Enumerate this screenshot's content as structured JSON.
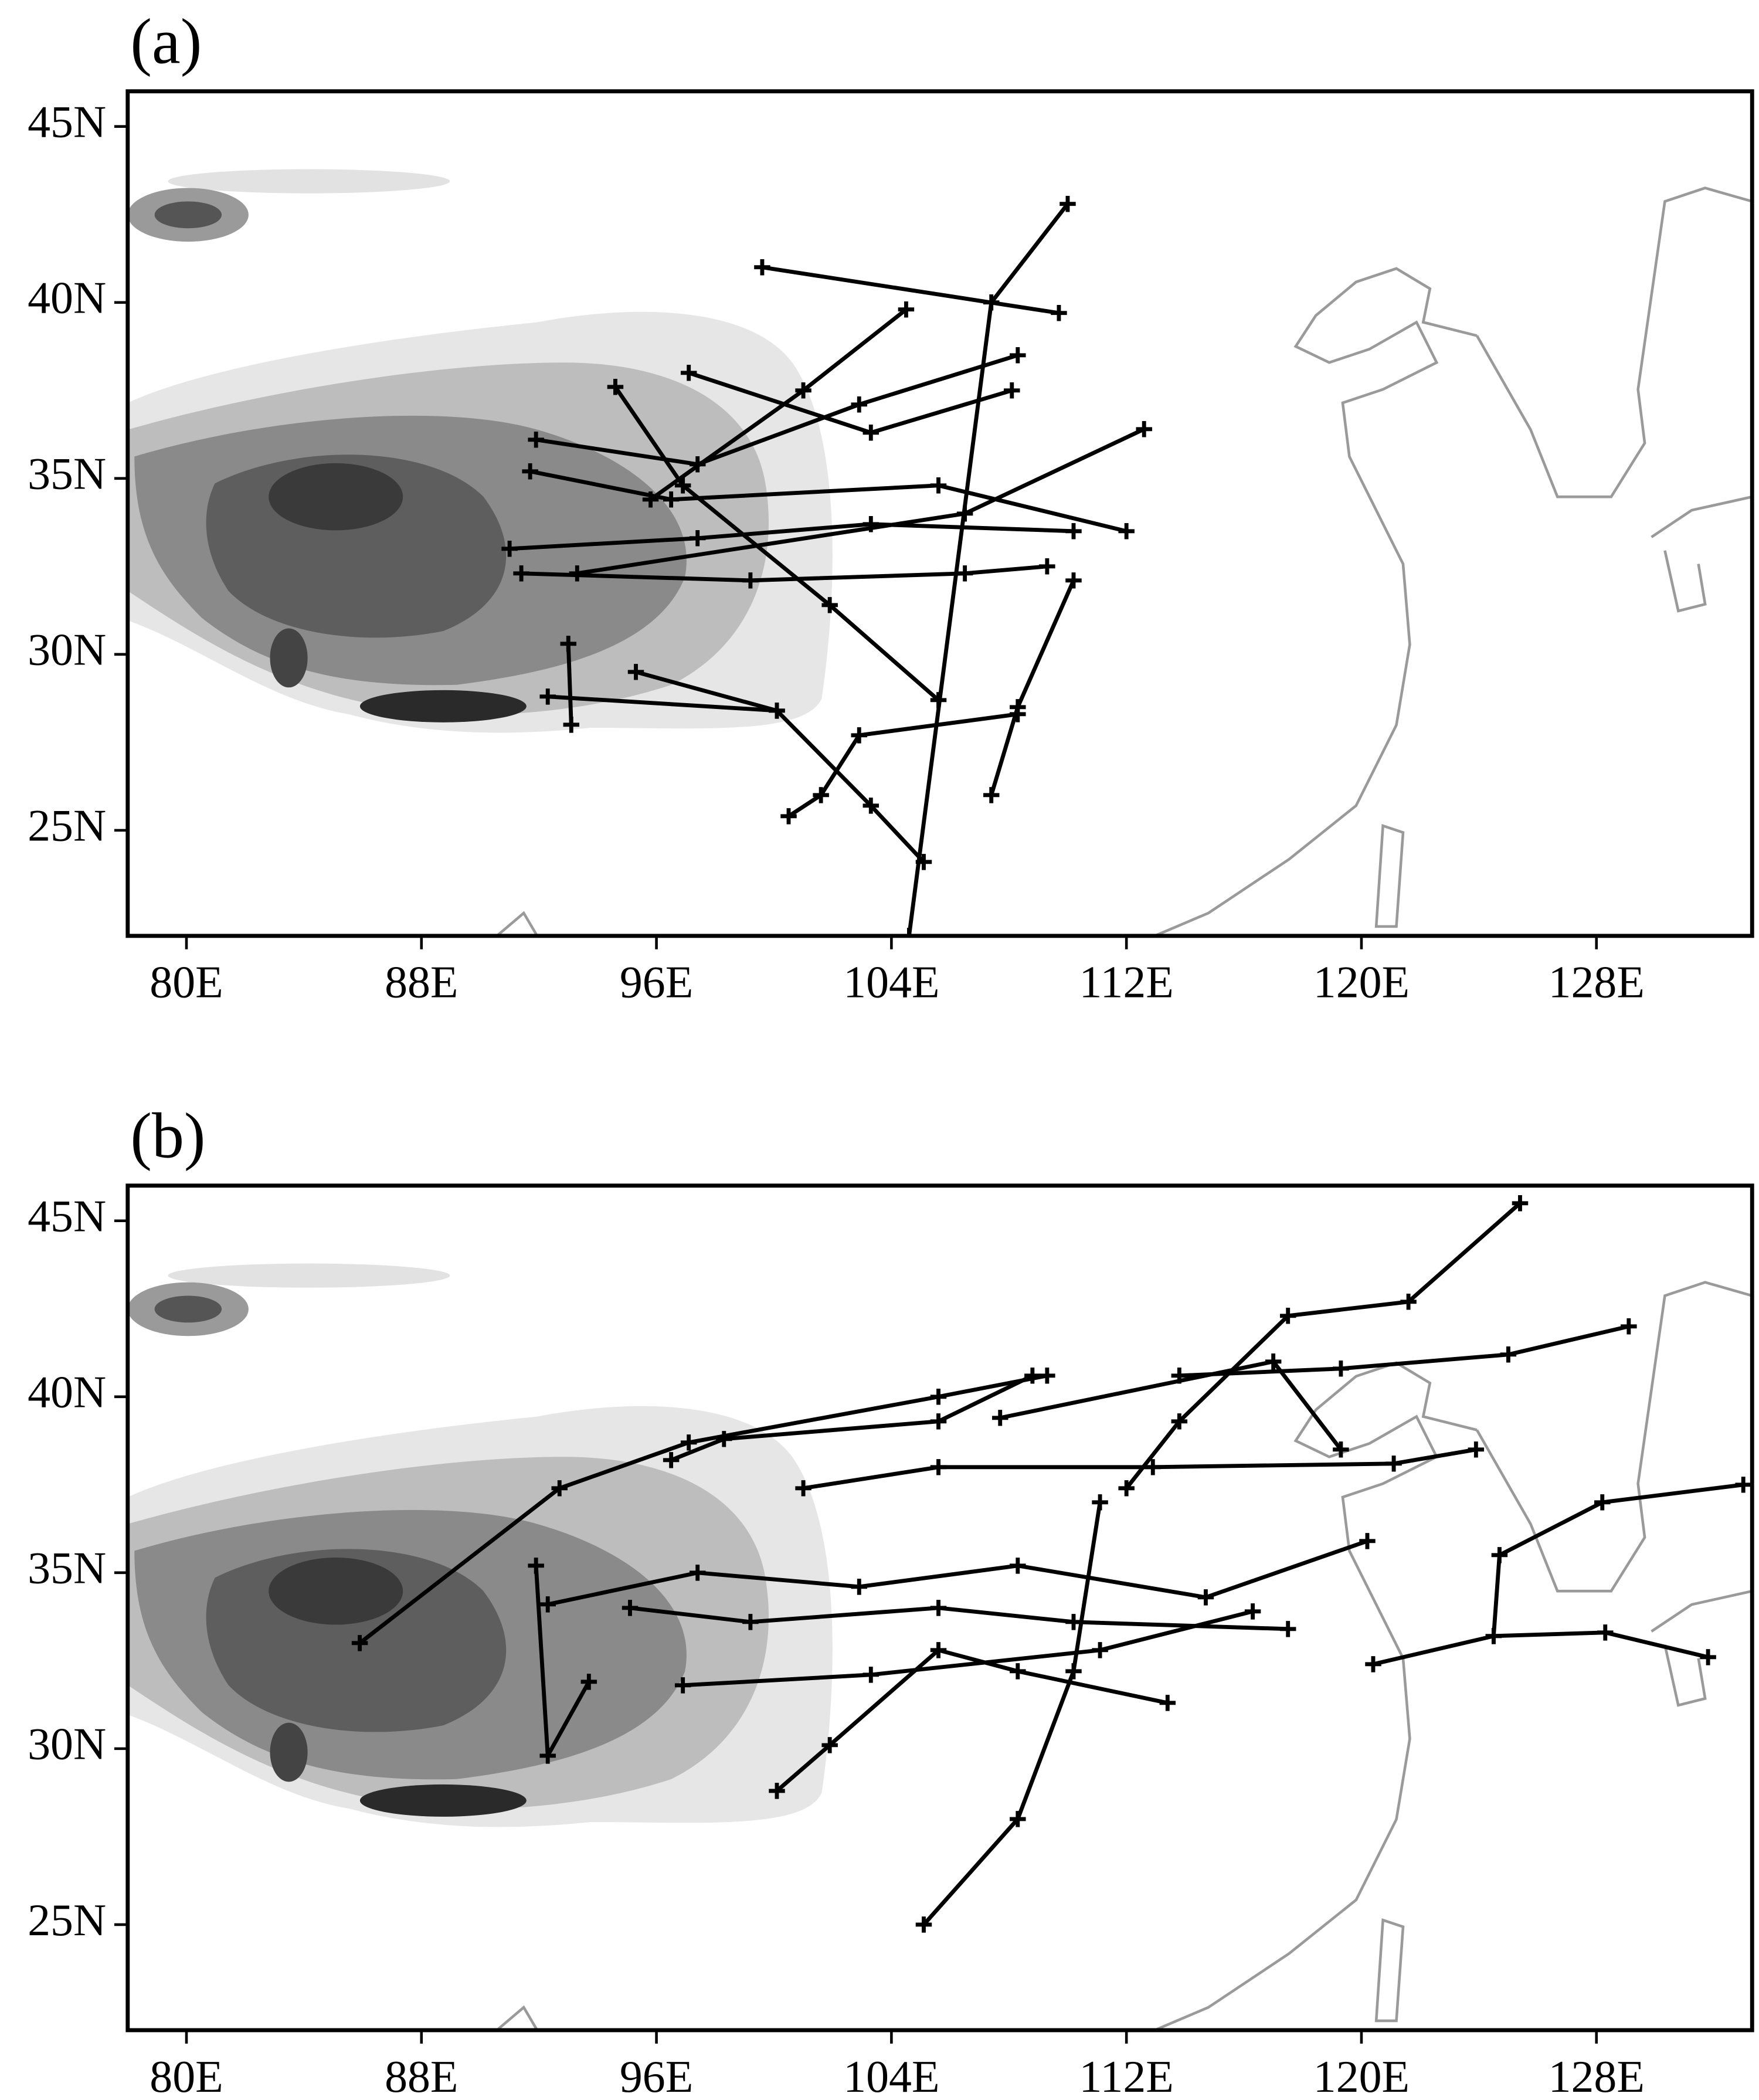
{
  "chart_data": [
    {
      "type": "line",
      "title": "(a)",
      "color": "#000000",
      "marker": "+",
      "xlim": [
        78,
        133.3
      ],
      "ylim": [
        22,
        46
      ],
      "xticks": [
        {
          "value": 80,
          "label": "80E"
        },
        {
          "value": 88,
          "label": "88E"
        },
        {
          "value": 96,
          "label": "96E"
        },
        {
          "value": 104,
          "label": "104E"
        },
        {
          "value": 112,
          "label": "112E"
        },
        {
          "value": 120,
          "label": "120E"
        },
        {
          "value": 128,
          "label": "128E"
        }
      ],
      "yticks": [
        {
          "value": 25,
          "label": "25N"
        },
        {
          "value": 30,
          "label": "30N"
        },
        {
          "value": 35,
          "label": "35N"
        },
        {
          "value": 40,
          "label": "40N"
        },
        {
          "value": 45,
          "label": "45N"
        }
      ],
      "series": [
        {
          "x": [
            99.6,
            109.7
          ],
          "values": [
            41.0,
            39.7
          ]
        },
        {
          "x": [
            110.0,
            107.4,
            104.6
          ],
          "values": [
            42.8,
            40.0,
            22.0
          ]
        },
        {
          "x": [
            112.6,
            106.5,
            93.3
          ],
          "values": [
            36.4,
            34.0,
            32.3
          ]
        },
        {
          "x": [
            95.3,
            100.1,
            103.3,
            105.1
          ],
          "values": [
            29.5,
            28.4,
            25.7,
            24.1
          ]
        },
        {
          "x": [
            92.3,
            100.1
          ],
          "values": [
            28.8,
            28.4
          ]
        },
        {
          "x": [
            93.0,
            93.1
          ],
          "values": [
            30.3,
            28.0
          ]
        },
        {
          "x": [
            91.0,
            97.4,
            103.3,
            110.2
          ],
          "values": [
            33.0,
            33.3,
            33.7,
            33.5
          ]
        },
        {
          "x": [
            91.9,
            97.4,
            102.9,
            108.3
          ],
          "values": [
            36.1,
            35.4,
            37.1,
            38.5
          ]
        },
        {
          "x": [
            94.6,
            96.9,
            101.9,
            105.6
          ],
          "values": [
            37.6,
            34.8,
            31.4,
            28.7
          ]
        },
        {
          "x": [
            97.1,
            103.3,
            108.1
          ],
          "values": [
            38.0,
            36.3,
            37.5
          ]
        },
        {
          "x": [
            91.7,
            96.5,
            105.6,
            112.0
          ],
          "values": [
            35.2,
            34.4,
            34.8,
            33.5
          ]
        },
        {
          "x": [
            91.4,
            99.2,
            106.5,
            109.3
          ],
          "values": [
            32.3,
            32.1,
            32.3,
            32.5
          ]
        },
        {
          "x": [
            107.4,
            108.3,
            110.2
          ],
          "values": [
            26.0,
            28.5,
            32.1
          ]
        },
        {
          "x": [
            100.5,
            101.6,
            102.9,
            108.3
          ],
          "values": [
            25.4,
            26.0,
            27.7,
            28.3
          ]
        },
        {
          "x": [
            104.5,
            101.0,
            95.8
          ],
          "values": [
            39.8,
            37.5,
            34.4
          ]
        }
      ]
    },
    {
      "type": "line",
      "title": "(b)",
      "color": "#000000",
      "marker": "+",
      "xlim": [
        78,
        133.3
      ],
      "ylim": [
        22,
        46
      ],
      "xticks": [
        {
          "value": 80,
          "label": "80E"
        },
        {
          "value": 88,
          "label": "88E"
        },
        {
          "value": 96,
          "label": "96E"
        },
        {
          "value": 104,
          "label": "104E"
        },
        {
          "value": 112,
          "label": "112E"
        },
        {
          "value": 120,
          "label": "120E"
        },
        {
          "value": 128,
          "label": "128E"
        }
      ],
      "yticks": [
        {
          "value": 25,
          "label": "25N"
        },
        {
          "value": 30,
          "label": "30N"
        },
        {
          "value": 35,
          "label": "35N"
        },
        {
          "value": 40,
          "label": "40N"
        },
        {
          "value": 45,
          "label": "45N"
        }
      ],
      "series": [
        {
          "x": [
            85.9,
            92.7,
            97.1,
            105.6,
            109.3
          ],
          "values": [
            33.0,
            37.4,
            38.7,
            40.0,
            40.6
          ]
        },
        {
          "x": [
            105.1,
            108.3,
            110.2,
            111.1
          ],
          "values": [
            25.0,
            28.0,
            32.2,
            37.0
          ]
        },
        {
          "x": [
            125.4,
            121.6,
            117.5,
            113.8,
            112.0
          ],
          "values": [
            45.5,
            42.7,
            42.3,
            39.3,
            37.4
          ]
        },
        {
          "x": [
            133.0,
            128.2,
            124.7,
            124.5
          ],
          "values": [
            37.5,
            37.0,
            35.5,
            33.2
          ]
        },
        {
          "x": [
            120.4,
            124.5,
            128.3,
            131.8
          ],
          "values": [
            32.4,
            33.2,
            33.3,
            32.6
          ]
        },
        {
          "x": [
            92.3,
            97.4,
            102.9,
            108.3,
            114.7,
            120.2
          ],
          "values": [
            34.1,
            35.0,
            34.6,
            35.2,
            34.3,
            35.9
          ]
        },
        {
          "x": [
            91.9,
            92.3,
            93.7
          ],
          "values": [
            35.2,
            29.8,
            31.9
          ]
        },
        {
          "x": [
            100.1,
            101.9,
            105.6,
            108.3,
            113.4
          ],
          "values": [
            28.8,
            30.1,
            32.8,
            32.2,
            31.3
          ]
        },
        {
          "x": [
            96.9,
            103.3,
            111.1,
            116.3
          ],
          "values": [
            31.8,
            32.1,
            32.8,
            33.9
          ]
        },
        {
          "x": [
            101.0,
            105.6,
            112.9,
            121.1,
            123.9
          ],
          "values": [
            37.4,
            38.0,
            38.0,
            38.1,
            38.5
          ]
        },
        {
          "x": [
            107.7,
            117.0,
            119.3
          ],
          "values": [
            39.4,
            41.0,
            38.5
          ]
        },
        {
          "x": [
            95.1,
            99.2,
            105.6,
            110.2,
            117.5
          ],
          "values": [
            34.0,
            33.6,
            34.0,
            33.6,
            33.4
          ]
        },
        {
          "x": [
            129.1,
            125.0,
            119.3,
            113.8
          ],
          "values": [
            42.0,
            41.2,
            40.8,
            40.6
          ]
        },
        {
          "x": [
            96.5,
            98.3,
            105.6,
            108.8
          ],
          "values": [
            38.2,
            38.8,
            39.3,
            40.6
          ]
        }
      ]
    }
  ]
}
